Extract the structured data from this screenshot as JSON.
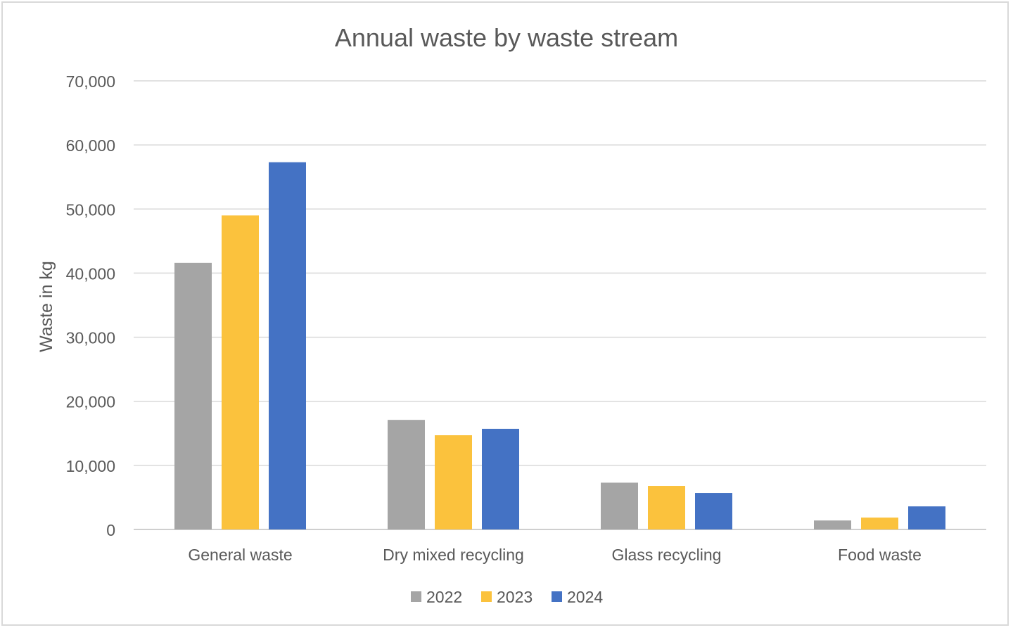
{
  "chart_data": {
    "type": "bar",
    "title": "Annual waste by waste stream",
    "xlabel": "",
    "ylabel": "Waste in kg",
    "ylim": [
      0,
      70000
    ],
    "yticks": [
      0,
      10000,
      20000,
      30000,
      40000,
      50000,
      60000,
      70000
    ],
    "ytick_labels": [
      "0",
      "10,000",
      "20,000",
      "30,000",
      "40,000",
      "50,000",
      "60,000",
      "70,000"
    ],
    "categories": [
      "General waste",
      "Dry mixed recycling",
      "Glass recycling",
      "Food waste"
    ],
    "series": [
      {
        "name": "2022",
        "color": "#a5a5a5",
        "values": [
          41600,
          17100,
          7300,
          1400
        ]
      },
      {
        "name": "2023",
        "color": "#fbc23d",
        "values": [
          49000,
          14700,
          6800,
          1850
        ]
      },
      {
        "name": "2024",
        "color": "#4472c4",
        "values": [
          57300,
          15700,
          5700,
          3600
        ]
      }
    ],
    "grid": true,
    "legend_position": "bottom"
  }
}
